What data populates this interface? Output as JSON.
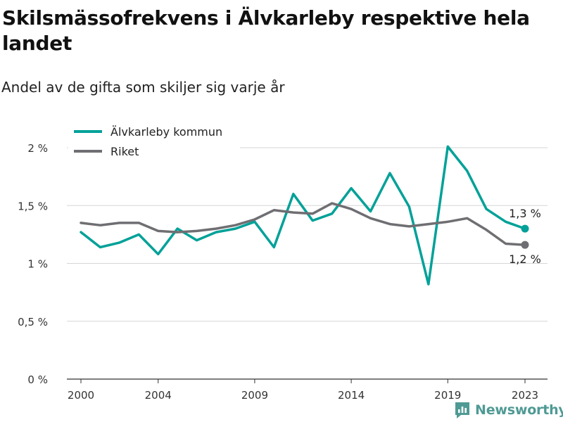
{
  "title": "Skilsmässofrekvens i Älvkarleby respektive hela landet",
  "subtitle": "Andel av de gifta som skiljer sig varje år",
  "brand": {
    "name": "Newsworthy",
    "color": "#4f9a94"
  },
  "chart_data": {
    "type": "line",
    "ylim": [
      0,
      2.2
    ],
    "xlim": [
      1999.3,
      2024
    ],
    "y_ticks": [
      {
        "value": 0,
        "label": "0 %"
      },
      {
        "value": 0.5,
        "label": "0,5 %"
      },
      {
        "value": 1,
        "label": "1 %"
      },
      {
        "value": 1.5,
        "label": "1,5 %"
      },
      {
        "value": 2,
        "label": "2 %"
      }
    ],
    "x_ticks": [
      {
        "value": 2000,
        "label": "2000"
      },
      {
        "value": 2004,
        "label": "2004"
      },
      {
        "value": 2009,
        "label": "2009"
      },
      {
        "value": 2014,
        "label": "2014"
      },
      {
        "value": 2019,
        "label": "2019"
      },
      {
        "value": 2023,
        "label": "2023"
      }
    ],
    "grid": true,
    "legend_position": "top-left",
    "x": [
      2000,
      2001,
      2002,
      2003,
      2004,
      2005,
      2006,
      2007,
      2008,
      2009,
      2010,
      2011,
      2012,
      2013,
      2014,
      2015,
      2016,
      2017,
      2018,
      2019,
      2020,
      2021,
      2022,
      2023
    ],
    "series": [
      {
        "name": "Älvkarleby kommun",
        "color": "#00a198",
        "values": [
          1.27,
          1.14,
          1.18,
          1.25,
          1.08,
          1.3,
          1.2,
          1.27,
          1.3,
          1.36,
          1.14,
          1.6,
          1.37,
          1.43,
          1.65,
          1.45,
          1.78,
          1.49,
          0.82,
          2.01,
          1.8,
          1.47,
          1.36,
          1.3
        ],
        "end_label": "1,3 %"
      },
      {
        "name": "Riket",
        "color": "#6f6e72",
        "values": [
          1.35,
          1.33,
          1.35,
          1.35,
          1.28,
          1.27,
          1.28,
          1.3,
          1.33,
          1.38,
          1.46,
          1.44,
          1.43,
          1.52,
          1.47,
          1.39,
          1.34,
          1.32,
          1.34,
          1.36,
          1.39,
          1.29,
          1.17,
          1.16
        ],
        "end_label": "1,2 %"
      }
    ]
  }
}
